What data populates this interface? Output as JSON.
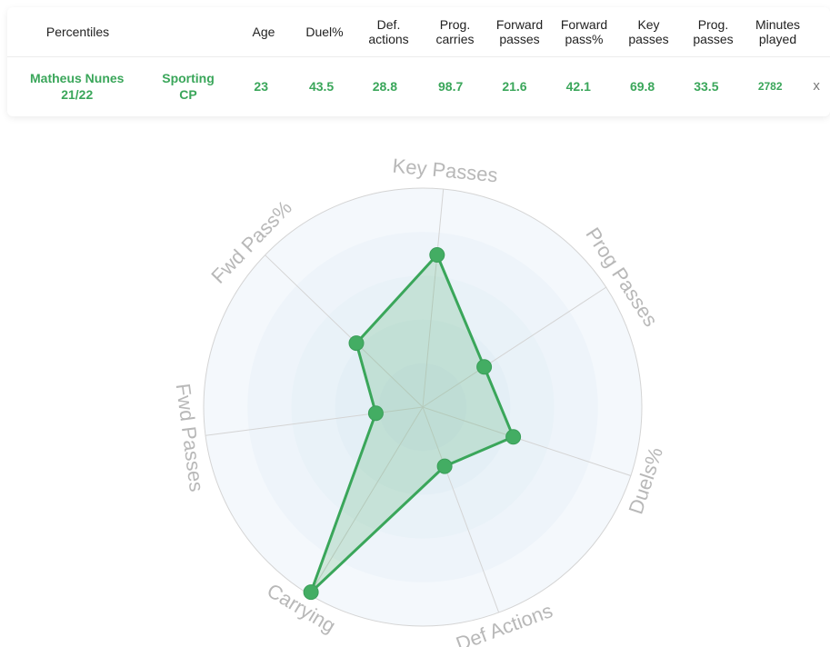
{
  "table": {
    "headers": [
      "Percentiles",
      "Age",
      "Duel%",
      "Def.\nactions",
      "Prog.\ncarries",
      "Forward\npasses",
      "Forward\npass%",
      "Key\npasses",
      "Prog.\npasses",
      "Minutes\nplayed"
    ],
    "row": {
      "player": "Matheus Nunes\n21/22",
      "team": "Sporting\nCP",
      "values": [
        "23",
        "43.5",
        "28.8",
        "98.7",
        "21.6",
        "42.1",
        "69.8",
        "33.5",
        "2782"
      ],
      "close": "x"
    }
  },
  "chart_data": {
    "type": "radar",
    "axes": [
      "Key Passes",
      "Prog Passes",
      "Duels%",
      "Def Actions",
      "Carrying",
      "Fwd Passes",
      "Fwd Pass%"
    ],
    "series": [
      {
        "values": [
          69.8,
          33.5,
          43.5,
          28.8,
          98.7,
          21.6,
          42.1
        ]
      }
    ],
    "range": [
      0,
      100
    ],
    "rings": 5,
    "colors": {
      "line": "#3aa65a",
      "fill": "#3aa65a",
      "point": "#43ad63",
      "grid": "#d4d4d4",
      "label": "#b8b8b8"
    }
  }
}
